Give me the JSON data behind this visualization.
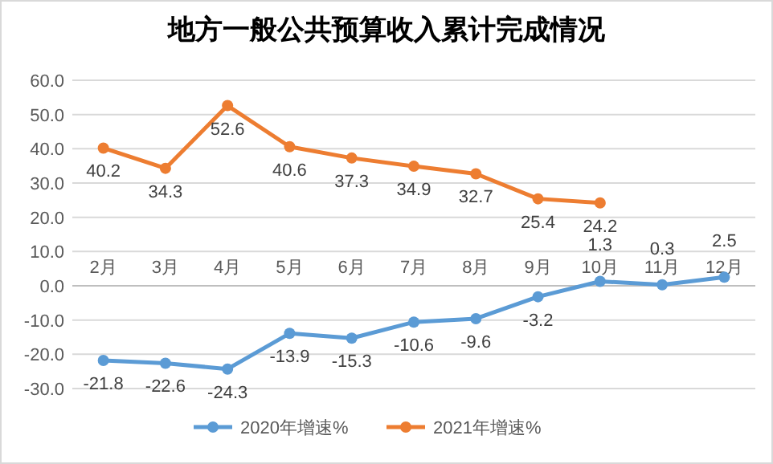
{
  "chart_data": {
    "type": "line",
    "title": "地方一般公共预算收入累计完成情况",
    "categories": [
      "2月",
      "3月",
      "4月",
      "5月",
      "6月",
      "7月",
      "8月",
      "9月",
      "10月",
      "11月",
      "12月"
    ],
    "series": [
      {
        "name": "2020年增速%",
        "color": "#5b9bd5",
        "values": [
          -21.8,
          -22.6,
          -24.3,
          -13.9,
          -15.3,
          -10.6,
          -9.6,
          -3.2,
          1.3,
          0.3,
          2.5
        ]
      },
      {
        "name": "2021年增速%",
        "color": "#ed7d31",
        "values": [
          40.2,
          34.3,
          52.6,
          40.6,
          37.3,
          34.9,
          32.7,
          25.4,
          24.2,
          null,
          null
        ]
      }
    ],
    "ylim": [
      -30,
      60
    ],
    "yticks": [
      {
        "value": -30,
        "label": "-30.0"
      },
      {
        "value": -20,
        "label": "-20.0"
      },
      {
        "value": -10,
        "label": "-10.0"
      },
      {
        "value": 0,
        "label": "0.0"
      },
      {
        "value": 10,
        "label": "10.0"
      },
      {
        "value": 20,
        "label": "20.0"
      },
      {
        "value": 30,
        "label": "30.0"
      },
      {
        "value": 40,
        "label": "40.0"
      },
      {
        "value": 50,
        "label": "50.0"
      },
      {
        "value": 60,
        "label": "60.0"
      }
    ],
    "grid": "y",
    "legend": "bottom",
    "marker": "circle",
    "line_style": "solid",
    "data_labels": true
  }
}
